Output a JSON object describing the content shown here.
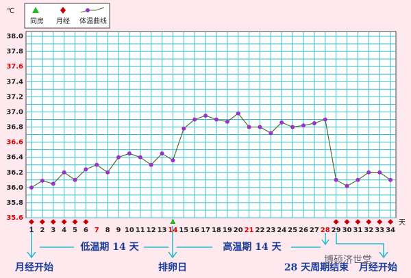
{
  "chart_data": {
    "type": "line",
    "legend": {
      "intercourse": "同房",
      "menses": "月经",
      "curve": "体温曲线"
    },
    "y_unit": "℃",
    "x_unit": "天",
    "x": [
      1,
      2,
      3,
      4,
      5,
      6,
      7,
      8,
      9,
      10,
      11,
      12,
      13,
      14,
      15,
      16,
      17,
      18,
      19,
      20,
      21,
      22,
      23,
      24,
      25,
      26,
      27,
      28,
      29,
      30,
      31,
      32,
      33,
      34
    ],
    "series": [
      {
        "name": "体温曲线",
        "color": "#556b2f",
        "marker_color": "#9932cc",
        "values": [
          36.0,
          36.09,
          36.05,
          36.2,
          36.1,
          36.24,
          36.3,
          36.2,
          36.4,
          36.45,
          36.4,
          36.3,
          36.45,
          36.36,
          36.78,
          36.9,
          36.95,
          36.9,
          36.87,
          36.98,
          36.8,
          36.8,
          36.72,
          36.86,
          36.8,
          36.82,
          36.85,
          36.9,
          36.1,
          36.02,
          36.1,
          36.2,
          36.2,
          36.1
        ]
      }
    ],
    "menses_days": [
      1,
      2,
      3,
      4,
      5,
      6,
      29,
      30,
      31,
      32,
      33,
      34
    ],
    "menses_color": "#cc0000",
    "intercourse_days": [
      14
    ],
    "intercourse_color": "#22bb22",
    "highlight_days": [
      7,
      14,
      21,
      28
    ],
    "highlight_yticks": [
      35.6,
      36.6,
      37.6
    ],
    "highlight_color": "#dd0000",
    "xlim": [
      0.5,
      34.5
    ],
    "ylim": [
      35.6,
      38.0
    ],
    "yticks": [
      35.6,
      35.8,
      {
        "value": 36,
        "label": "36.0"
      },
      36.2,
      36.4,
      36.6,
      36.8,
      {
        "value": 37,
        "label": "37.0"
      },
      37.2,
      37.4,
      37.6,
      37.8,
      {
        "value": 38,
        "label": "38.0"
      }
    ],
    "minor_yticks": [
      35.7,
      35.9,
      36.1,
      36.3,
      36.5,
      36.7,
      36.9,
      37.1,
      37.3,
      37.5,
      37.7,
      37.9
    ],
    "grid": true,
    "grid_color": "#33bbcc",
    "annotations": [
      "低温期 14 天",
      "高温期 14 天",
      "月经开始",
      "排卵日",
      "28 天周期结束",
      "月经开始"
    ],
    "watermark": "博硕济世堂"
  }
}
